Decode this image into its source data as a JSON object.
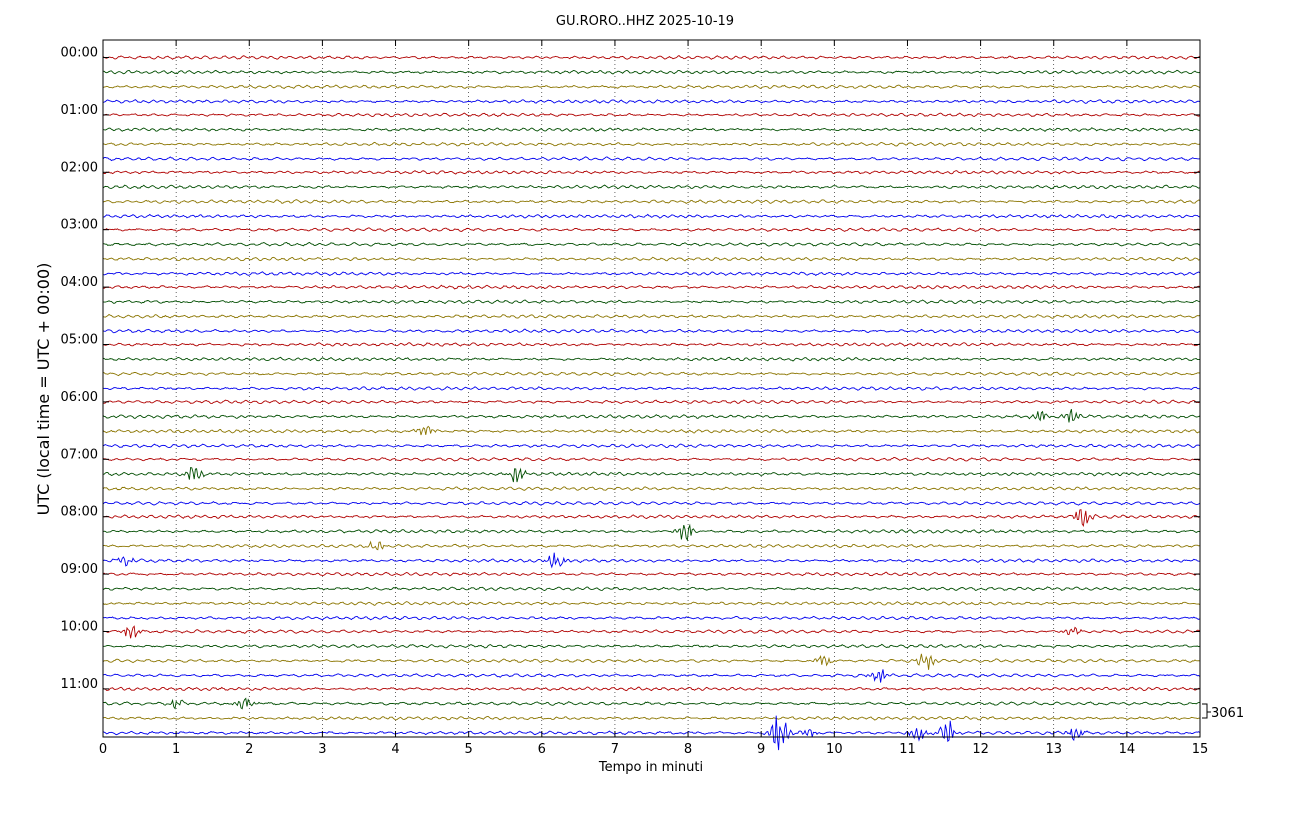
{
  "chart_data": {
    "type": "line",
    "title": "GU.RORO..HHZ 2025-10-19",
    "xlabel": "Tempo in minuti",
    "ylabel": "UTC (local time = UTC + 00:00)",
    "xlim": [
      0,
      15
    ],
    "x_ticks": [
      "0",
      "1",
      "2",
      "3",
      "4",
      "5",
      "6",
      "7",
      "8",
      "9",
      "10",
      "11",
      "12",
      "13",
      "14",
      "15"
    ],
    "y_ticks": [
      "00:00",
      "01:00",
      "02:00",
      "03:00",
      "04:00",
      "05:00",
      "06:00",
      "07:00",
      "08:00",
      "09:00",
      "10:00",
      "11:00"
    ],
    "trace_minutes": 15,
    "trace_count": 48,
    "trace_colors": [
      "#b00000",
      "#004d00",
      "#8b7500",
      "#0000ee"
    ],
    "grid": true,
    "scale_label": "3061",
    "events": [
      {
        "trace": 26,
        "minute": 4.4,
        "amp": 1.6
      },
      {
        "trace": 25,
        "minute": 12.8,
        "amp": 1.5
      },
      {
        "trace": 25,
        "minute": 13.25,
        "amp": 1.5
      },
      {
        "trace": 29,
        "minute": 1.25,
        "amp": 2.0
      },
      {
        "trace": 29,
        "minute": 5.65,
        "amp": 1.8
      },
      {
        "trace": 33,
        "minute": 7.95,
        "amp": 2.2
      },
      {
        "trace": 32,
        "minute": 13.4,
        "amp": 2.2
      },
      {
        "trace": 34,
        "minute": 3.75,
        "amp": 1.4
      },
      {
        "trace": 35,
        "minute": 6.2,
        "amp": 2.5
      },
      {
        "trace": 35,
        "minute": 0.3,
        "amp": 1.2
      },
      {
        "trace": 40,
        "minute": 0.4,
        "amp": 2.2
      },
      {
        "trace": 40,
        "minute": 13.25,
        "amp": 1.3
      },
      {
        "trace": 42,
        "minute": 11.25,
        "amp": 2.2
      },
      {
        "trace": 42,
        "minute": 9.85,
        "amp": 1.3
      },
      {
        "trace": 43,
        "minute": 10.6,
        "amp": 2.0
      },
      {
        "trace": 45,
        "minute": 1.95,
        "amp": 2.0
      },
      {
        "trace": 45,
        "minute": 1.0,
        "amp": 1.2
      },
      {
        "trace": 47,
        "minute": 9.25,
        "amp": 5.0
      },
      {
        "trace": 47,
        "minute": 11.15,
        "amp": 2.4
      },
      {
        "trace": 47,
        "minute": 11.55,
        "amp": 3.2
      },
      {
        "trace": 47,
        "minute": 13.3,
        "amp": 1.8
      },
      {
        "trace": 47,
        "minute": 9.65,
        "amp": 1.2
      }
    ]
  }
}
